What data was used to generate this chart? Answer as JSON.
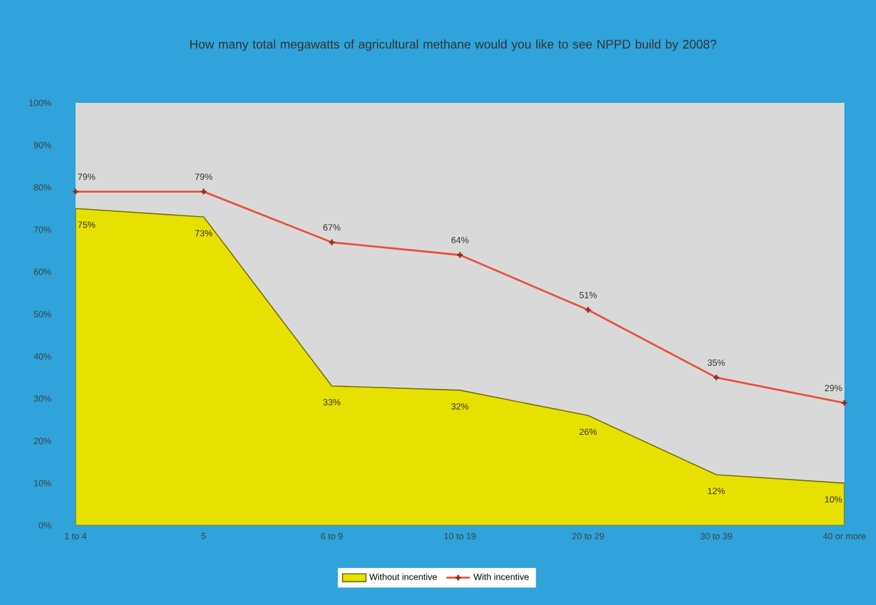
{
  "chart_data": {
    "type": "area",
    "title": "How many total megawatts of agricultural methane would you like to see NPPD build by 2008?",
    "categories": [
      "1 to 4",
      "5",
      "6 to 9",
      "10 to 19",
      "20 to 29",
      "30 to 39",
      "40 or more"
    ],
    "series": [
      {
        "name": "Without incentive",
        "color": "#e8e000",
        "values": [
          75,
          73,
          33,
          32,
          26,
          12,
          10
        ],
        "value_labels": [
          "75%",
          "73%",
          "33%",
          "32%",
          "26%",
          "12%",
          "10%"
        ]
      },
      {
        "name": "With incentive",
        "type": "line",
        "color": "#e8503a",
        "marker": "cross",
        "values": [
          79,
          79,
          67,
          64,
          51,
          35,
          29
        ],
        "value_labels": [
          "79%",
          "79%",
          "67%",
          "64%",
          "51%",
          "35%",
          "29%"
        ]
      }
    ],
    "ylim": [
      0,
      100
    ],
    "yticks": [
      {
        "value": 0,
        "label": "0%"
      },
      {
        "value": 10,
        "label": "10%"
      },
      {
        "value": 20,
        "label": "20%"
      },
      {
        "value": 30,
        "label": "30%"
      },
      {
        "value": 40,
        "label": "40%"
      },
      {
        "value": 50,
        "label": "50%"
      },
      {
        "value": 60,
        "label": "60%"
      },
      {
        "value": 70,
        "label": "70%"
      },
      {
        "value": 80,
        "label": "80%"
      },
      {
        "value": 90,
        "label": "90%"
      },
      {
        "value": 100,
        "label": "100%"
      }
    ],
    "legend": "bottom"
  }
}
